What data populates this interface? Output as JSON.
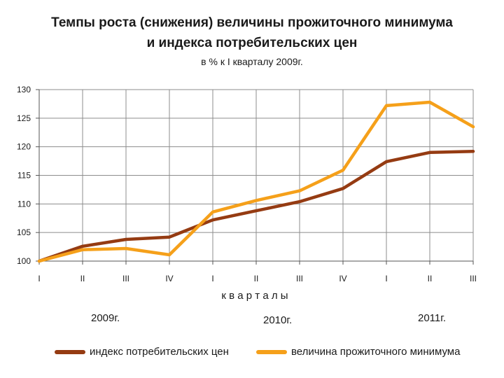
{
  "chart_data": {
    "type": "line",
    "title_line1": "Темпы роста (снижения) величины прожиточного минимума",
    "title_line2": "и индекса потребительских цен",
    "subtitle": "в % к I кварталу 2009г.",
    "xlabel": "к в а р т а л ы",
    "ylabel": "",
    "categories": [
      "I",
      "II",
      "III",
      "IV",
      "I",
      "II",
      "III",
      "IV",
      "I",
      "II",
      "III"
    ],
    "year_labels": [
      "2009г.",
      "2010г.",
      "2011г."
    ],
    "ylim": [
      100,
      130
    ],
    "yticks": [
      100,
      105,
      110,
      115,
      120,
      125,
      130
    ],
    "grid": true,
    "legend_position": "bottom",
    "series": [
      {
        "name": "индекс потребительских цен",
        "color": "#953b12",
        "values": [
          100.0,
          102.6,
          103.8,
          104.2,
          107.2,
          108.8,
          110.4,
          112.7,
          117.4,
          119.0,
          119.2
        ]
      },
      {
        "name": "величина прожиточного минимума",
        "color": "#f5a01a",
        "values": [
          100.0,
          102.0,
          102.2,
          101.1,
          108.6,
          110.6,
          112.3,
          115.9,
          127.2,
          127.8,
          123.5
        ]
      }
    ]
  }
}
